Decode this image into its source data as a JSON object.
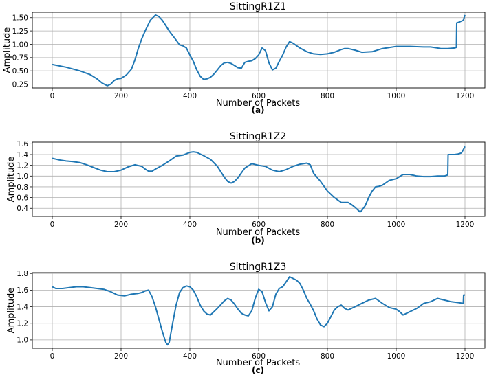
{
  "chart_data": [
    {
      "type": "line",
      "title": "SittingR1Z1",
      "xlabel": "Number of Packets",
      "ylabel": "Amplitude",
      "caption": "(a)",
      "xlim": [
        -58,
        1258
      ],
      "ylim": [
        0.18,
        1.6
      ],
      "xticks": [
        0,
        200,
        400,
        600,
        800,
        1000,
        1200
      ],
      "yticks": [
        0.25,
        0.5,
        0.75,
        1.0,
        1.25,
        1.5
      ],
      "ytick_labels": [
        "0.25",
        "0.50",
        "0.75",
        "1.00",
        "1.25",
        "1.50"
      ],
      "grid": true,
      "color": "#1f77b4",
      "x": [
        0,
        40,
        80,
        110,
        130,
        145,
        160,
        170,
        180,
        190,
        200,
        215,
        230,
        240,
        250,
        260,
        270,
        285,
        300,
        310,
        320,
        340,
        360,
        370,
        380,
        390,
        400,
        410,
        420,
        430,
        440,
        450,
        460,
        470,
        480,
        490,
        500,
        510,
        520,
        530,
        540,
        550,
        560,
        570,
        580,
        590,
        600,
        610,
        620,
        630,
        640,
        650,
        660,
        670,
        680,
        690,
        700,
        720,
        740,
        760,
        780,
        800,
        820,
        840,
        850,
        860,
        880,
        900,
        930,
        960,
        1000,
        1040,
        1080,
        1100,
        1110,
        1130,
        1150,
        1170,
        1175,
        1176,
        1185,
        1195,
        1200
      ],
      "values": [
        0.62,
        0.57,
        0.5,
        0.43,
        0.35,
        0.27,
        0.22,
        0.25,
        0.32,
        0.35,
        0.36,
        0.42,
        0.53,
        0.7,
        0.92,
        1.1,
        1.25,
        1.45,
        1.55,
        1.52,
        1.45,
        1.25,
        1.08,
        0.99,
        0.97,
        0.93,
        0.8,
        0.68,
        0.52,
        0.4,
        0.34,
        0.35,
        0.38,
        0.44,
        0.52,
        0.6,
        0.65,
        0.66,
        0.64,
        0.6,
        0.56,
        0.55,
        0.66,
        0.68,
        0.69,
        0.73,
        0.8,
        0.93,
        0.88,
        0.65,
        0.52,
        0.55,
        0.68,
        0.8,
        0.95,
        1.05,
        1.02,
        0.93,
        0.86,
        0.82,
        0.81,
        0.82,
        0.85,
        0.9,
        0.92,
        0.92,
        0.89,
        0.85,
        0.86,
        0.92,
        0.96,
        0.96,
        0.95,
        0.95,
        0.94,
        0.92,
        0.92,
        0.93,
        0.94,
        1.4,
        1.42,
        1.45,
        1.55
      ]
    },
    {
      "type": "line",
      "title": "SittingR1Z2",
      "xlabel": "Number of Packets",
      "ylabel": "Amplitude",
      "caption": "(b)",
      "xlim": [
        -58,
        1258
      ],
      "ylim": [
        0.25,
        1.63
      ],
      "xticks": [
        0,
        200,
        400,
        600,
        800,
        1000,
        1200
      ],
      "yticks": [
        0.4,
        0.6,
        0.8,
        1.0,
        1.2,
        1.4,
        1.6
      ],
      "ytick_labels": [
        "0.4",
        "0.6",
        "0.8",
        "1.0",
        "1.2",
        "1.4",
        "1.6"
      ],
      "grid": true,
      "color": "#1f77b4",
      "x": [
        0,
        20,
        40,
        60,
        80,
        100,
        120,
        140,
        160,
        180,
        200,
        220,
        240,
        260,
        270,
        280,
        290,
        300,
        320,
        340,
        360,
        380,
        400,
        410,
        420,
        440,
        460,
        480,
        500,
        510,
        520,
        530,
        540,
        560,
        580,
        600,
        620,
        640,
        660,
        680,
        700,
        720,
        740,
        750,
        760,
        780,
        800,
        810,
        820,
        840,
        860,
        870,
        880,
        890,
        895,
        900,
        910,
        920,
        930,
        940,
        950,
        960,
        980,
        1000,
        1020,
        1040,
        1060,
        1080,
        1100,
        1120,
        1140,
        1150,
        1151,
        1170,
        1180,
        1190,
        1200
      ],
      "values": [
        1.33,
        1.3,
        1.28,
        1.27,
        1.25,
        1.21,
        1.16,
        1.11,
        1.08,
        1.08,
        1.11,
        1.17,
        1.21,
        1.18,
        1.13,
        1.09,
        1.09,
        1.13,
        1.2,
        1.28,
        1.37,
        1.39,
        1.44,
        1.45,
        1.44,
        1.38,
        1.31,
        1.18,
        0.98,
        0.9,
        0.87,
        0.9,
        0.97,
        1.15,
        1.23,
        1.2,
        1.18,
        1.11,
        1.08,
        1.12,
        1.18,
        1.22,
        1.24,
        1.21,
        1.05,
        0.9,
        0.72,
        0.66,
        0.6,
        0.51,
        0.51,
        0.47,
        0.42,
        0.36,
        0.33,
        0.36,
        0.45,
        0.6,
        0.72,
        0.8,
        0.81,
        0.83,
        0.92,
        0.95,
        1.03,
        1.03,
        1.0,
        0.99,
        0.99,
        1.0,
        1.0,
        1.02,
        1.4,
        1.4,
        1.41,
        1.43,
        1.55
      ]
    },
    {
      "type": "line",
      "title": "SittingR1Z3",
      "xlabel": "Number of Packets",
      "ylabel": "Amplitude",
      "caption": "(c)",
      "xlim": [
        -58,
        1258
      ],
      "ylim": [
        0.9,
        1.81
      ],
      "xticks": [
        0,
        200,
        400,
        600,
        800,
        1000,
        1200
      ],
      "yticks": [
        1.0,
        1.2,
        1.4,
        1.6,
        1.8
      ],
      "ytick_labels": [
        "1.0",
        "1.2",
        "1.4",
        "1.6",
        "1.8"
      ],
      "grid": true,
      "color": "#1f77b4",
      "x": [
        0,
        10,
        30,
        50,
        70,
        90,
        110,
        130,
        150,
        170,
        190,
        210,
        230,
        250,
        260,
        270,
        280,
        290,
        300,
        310,
        320,
        330,
        335,
        340,
        350,
        360,
        370,
        380,
        390,
        400,
        410,
        420,
        430,
        440,
        450,
        460,
        480,
        500,
        510,
        520,
        530,
        540,
        550,
        560,
        570,
        580,
        590,
        600,
        610,
        620,
        630,
        640,
        650,
        660,
        670,
        680,
        690,
        700,
        710,
        720,
        730,
        740,
        750,
        760,
        770,
        780,
        790,
        800,
        810,
        820,
        830,
        840,
        850,
        860,
        880,
        900,
        920,
        940,
        960,
        980,
        1000,
        1010,
        1020,
        1040,
        1060,
        1080,
        1100,
        1120,
        1140,
        1160,
        1180,
        1195,
        1196,
        1200
      ],
      "values": [
        1.64,
        1.62,
        1.62,
        1.63,
        1.64,
        1.64,
        1.63,
        1.62,
        1.61,
        1.58,
        1.54,
        1.53,
        1.55,
        1.56,
        1.57,
        1.59,
        1.6,
        1.52,
        1.4,
        1.25,
        1.1,
        0.97,
        0.94,
        0.97,
        1.2,
        1.42,
        1.57,
        1.63,
        1.65,
        1.64,
        1.6,
        1.52,
        1.42,
        1.35,
        1.31,
        1.3,
        1.38,
        1.47,
        1.5,
        1.48,
        1.43,
        1.37,
        1.32,
        1.3,
        1.29,
        1.35,
        1.5,
        1.61,
        1.58,
        1.45,
        1.35,
        1.4,
        1.55,
        1.62,
        1.64,
        1.7,
        1.76,
        1.74,
        1.72,
        1.68,
        1.6,
        1.5,
        1.43,
        1.35,
        1.25,
        1.18,
        1.16,
        1.2,
        1.28,
        1.36,
        1.4,
        1.42,
        1.38,
        1.36,
        1.4,
        1.44,
        1.48,
        1.5,
        1.44,
        1.39,
        1.37,
        1.34,
        1.3,
        1.34,
        1.38,
        1.44,
        1.46,
        1.5,
        1.48,
        1.46,
        1.45,
        1.44,
        1.54,
        1.54
      ]
    }
  ]
}
